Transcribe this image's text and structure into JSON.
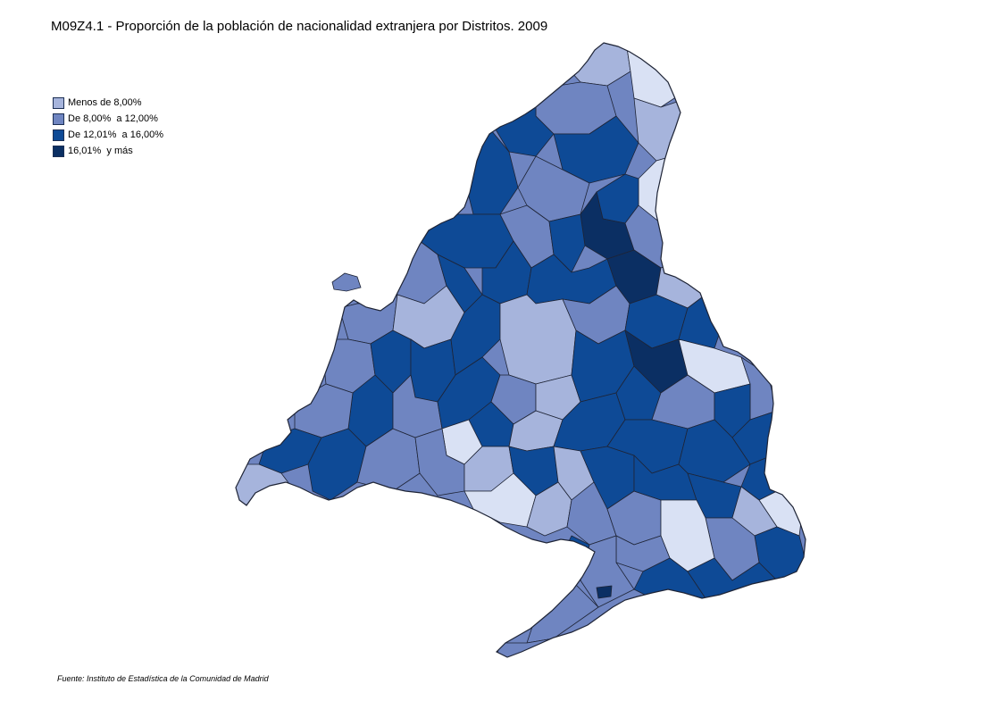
{
  "title": "M09Z4.1 - Proporción de la población de nacionalidad extranjera por Distritos. 2009",
  "legend": [
    {
      "label": "Menos de 8,00%",
      "color": "#a6b4dc"
    },
    {
      "label": "De 8,00%  a 12,00%",
      "color": "#6f85c1"
    },
    {
      "label": "De 12,01%  a 16,00%",
      "color": "#0e4a96"
    },
    {
      "label": "16,01%  y más",
      "color": "#0b2f63"
    }
  ],
  "map": {
    "region": "Comunidad de Madrid",
    "extra_color_lightest": "#d9e1f4",
    "border_color": "#1e2436"
  },
  "source": "Fuente: Instituto de Estadística de la Comunidad de Madrid"
}
